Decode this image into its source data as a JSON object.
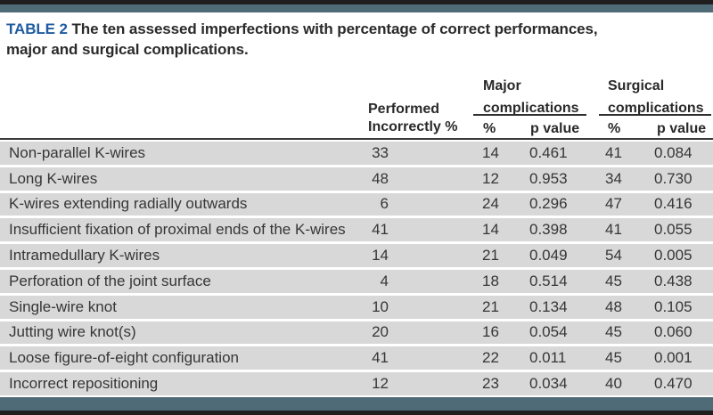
{
  "caption": {
    "label": "TABLE 2",
    "line1": "The ten assessed imperfections with percentage of correct performances,",
    "line2": "major and surgical complications."
  },
  "header": {
    "col1_line1": "Performed",
    "col1_line2": "Incorrectly %",
    "major_line1": "Major",
    "major_line2": "complications",
    "surgical_line1": "Surgical",
    "surgical_line2": "complications",
    "pct_label": "%",
    "pvalue_label": "p value"
  },
  "rows": [
    {
      "name": "Non-parallel K-wires",
      "performed": "33",
      "major_pct": "14",
      "major_p": "0.461",
      "surg_pct": "41",
      "surg_p": "0.084"
    },
    {
      "name": "Long K-wires",
      "performed": "48",
      "major_pct": "12",
      "major_p": "0.953",
      "surg_pct": "34",
      "surg_p": "0.730"
    },
    {
      "name": "K-wires extending radially outwards",
      "performed": "6",
      "major_pct": "24",
      "major_p": "0.296",
      "surg_pct": "47",
      "surg_p": "0.416"
    },
    {
      "name": "Insufficient fixation of proximal ends of the K-wires",
      "performed": "41",
      "major_pct": "14",
      "major_p": "0.398",
      "surg_pct": "41",
      "surg_p": "0.055"
    },
    {
      "name": "Intramedullary K-wires",
      "performed": "14",
      "major_pct": "21",
      "major_p": "0.049",
      "surg_pct": "54",
      "surg_p": "0.005"
    },
    {
      "name": "Perforation of the joint surface",
      "performed": "4",
      "major_pct": "18",
      "major_p": "0.514",
      "surg_pct": "45",
      "surg_p": "0.438"
    },
    {
      "name": "Single-wire knot",
      "performed": "10",
      "major_pct": "21",
      "major_p": "0.134",
      "surg_pct": "48",
      "surg_p": "0.105"
    },
    {
      "name": "Jutting wire knot(s)",
      "performed": "20",
      "major_pct": "16",
      "major_p": "0.054",
      "surg_pct": "45",
      "surg_p": "0.060"
    },
    {
      "name": "Loose figure-of-eight configuration",
      "performed": "41",
      "major_pct": "22",
      "major_p": "0.011",
      "surg_pct": "45",
      "surg_p": "0.001"
    },
    {
      "name": "Incorrect repositioning",
      "performed": "12",
      "major_pct": "23",
      "major_p": "0.034",
      "surg_pct": "40",
      "surg_p": "0.470"
    }
  ],
  "colors": {
    "accent_blue": "#1f5c9f",
    "band_slate": "#4e6b77",
    "bar_black": "#1f1d1d",
    "row_gray": "#d8d8d8"
  }
}
